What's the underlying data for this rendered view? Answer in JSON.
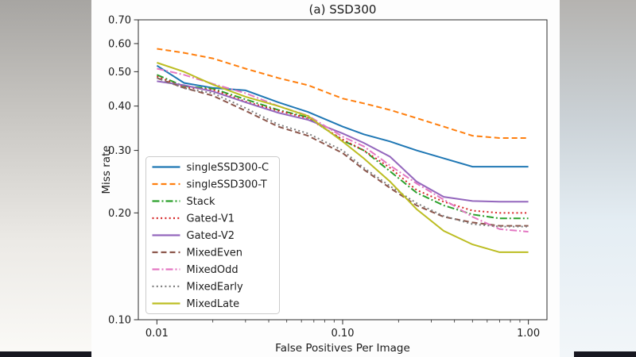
{
  "chart_data": {
    "type": "line",
    "title": "(a) SSD300",
    "xlabel": "False Positives Per Image",
    "ylabel": "Miss rate",
    "xscale": "log",
    "yscale": "log",
    "xlim": [
      0.01,
      1.0
    ],
    "ylim": [
      0.1,
      0.7
    ],
    "grid": false,
    "legend_position": "lower left",
    "x_tick_labels": [
      {
        "label": "0.01",
        "value": 0.01
      },
      {
        "label": "0.10",
        "value": 0.1
      },
      {
        "label": "1.00",
        "value": 1.0
      }
    ],
    "y_tick_labels": [
      {
        "label": "0.10",
        "value": 0.1
      },
      {
        "label": "0.20",
        "value": 0.2
      },
      {
        "label": "0.30",
        "value": 0.3
      },
      {
        "label": "0.40",
        "value": 0.4
      },
      {
        "label": "0.50",
        "value": 0.5
      },
      {
        "label": "0.60",
        "value": 0.6
      },
      {
        "label": "0.70",
        "value": 0.7
      }
    ],
    "x": [
      0.01,
      0.014,
      0.02,
      0.03,
      0.045,
      0.065,
      0.1,
      0.13,
      0.18,
      0.25,
      0.35,
      0.5,
      0.7,
      1.0
    ],
    "series": [
      {
        "name": "singleSSD300-C",
        "color": "#1f77b4",
        "style": "solid",
        "values": [
          0.52,
          0.465,
          0.45,
          0.443,
          0.41,
          0.385,
          0.35,
          0.333,
          0.318,
          0.3,
          0.285,
          0.27,
          0.27,
          0.27
        ]
      },
      {
        "name": "singleSSD300-T",
        "color": "#ff7f0e",
        "style": "dashed",
        "values": [
          0.58,
          0.565,
          0.545,
          0.51,
          0.48,
          0.458,
          0.42,
          0.407,
          0.39,
          0.37,
          0.35,
          0.33,
          0.325,
          0.325
        ]
      },
      {
        "name": "Stack",
        "color": "#2ca02c",
        "style": "dashdot",
        "values": [
          0.49,
          0.455,
          0.448,
          0.418,
          0.39,
          0.372,
          0.32,
          0.3,
          0.262,
          0.228,
          0.21,
          0.198,
          0.193,
          0.193
        ]
      },
      {
        "name": "Gated-V1",
        "color": "#d62728",
        "style": "dotted",
        "values": [
          0.485,
          0.452,
          0.445,
          0.412,
          0.388,
          0.37,
          0.322,
          0.3,
          0.268,
          0.232,
          0.215,
          0.203,
          0.2,
          0.2
        ]
      },
      {
        "name": "Gated-V2",
        "color": "#9467bd",
        "style": "solid",
        "values": [
          0.47,
          0.458,
          0.44,
          0.41,
          0.383,
          0.366,
          0.335,
          0.315,
          0.288,
          0.245,
          0.222,
          0.216,
          0.215,
          0.215
        ]
      },
      {
        "name": "MixedEven",
        "color": "#8c564b",
        "style": "dashed",
        "values": [
          0.48,
          0.45,
          0.428,
          0.388,
          0.35,
          0.33,
          0.295,
          0.265,
          0.235,
          0.21,
          0.195,
          0.188,
          0.184,
          0.184
        ]
      },
      {
        "name": "MixedOdd",
        "color": "#e377c2",
        "style": "dashdot",
        "values": [
          0.51,
          0.49,
          0.462,
          0.435,
          0.4,
          0.376,
          0.328,
          0.308,
          0.272,
          0.242,
          0.218,
          0.195,
          0.18,
          0.177
        ]
      },
      {
        "name": "MixedEarly",
        "color": "#7f7f7f",
        "style": "dotted",
        "values": [
          0.48,
          0.449,
          0.435,
          0.395,
          0.355,
          0.335,
          0.3,
          0.268,
          0.238,
          0.213,
          0.196,
          0.186,
          0.183,
          0.183
        ]
      },
      {
        "name": "MixedLate",
        "color": "#bcbd22",
        "style": "solid",
        "values": [
          0.53,
          0.5,
          0.46,
          0.425,
          0.4,
          0.375,
          0.318,
          0.285,
          0.245,
          0.205,
          0.178,
          0.163,
          0.155,
          0.155
        ]
      }
    ]
  }
}
